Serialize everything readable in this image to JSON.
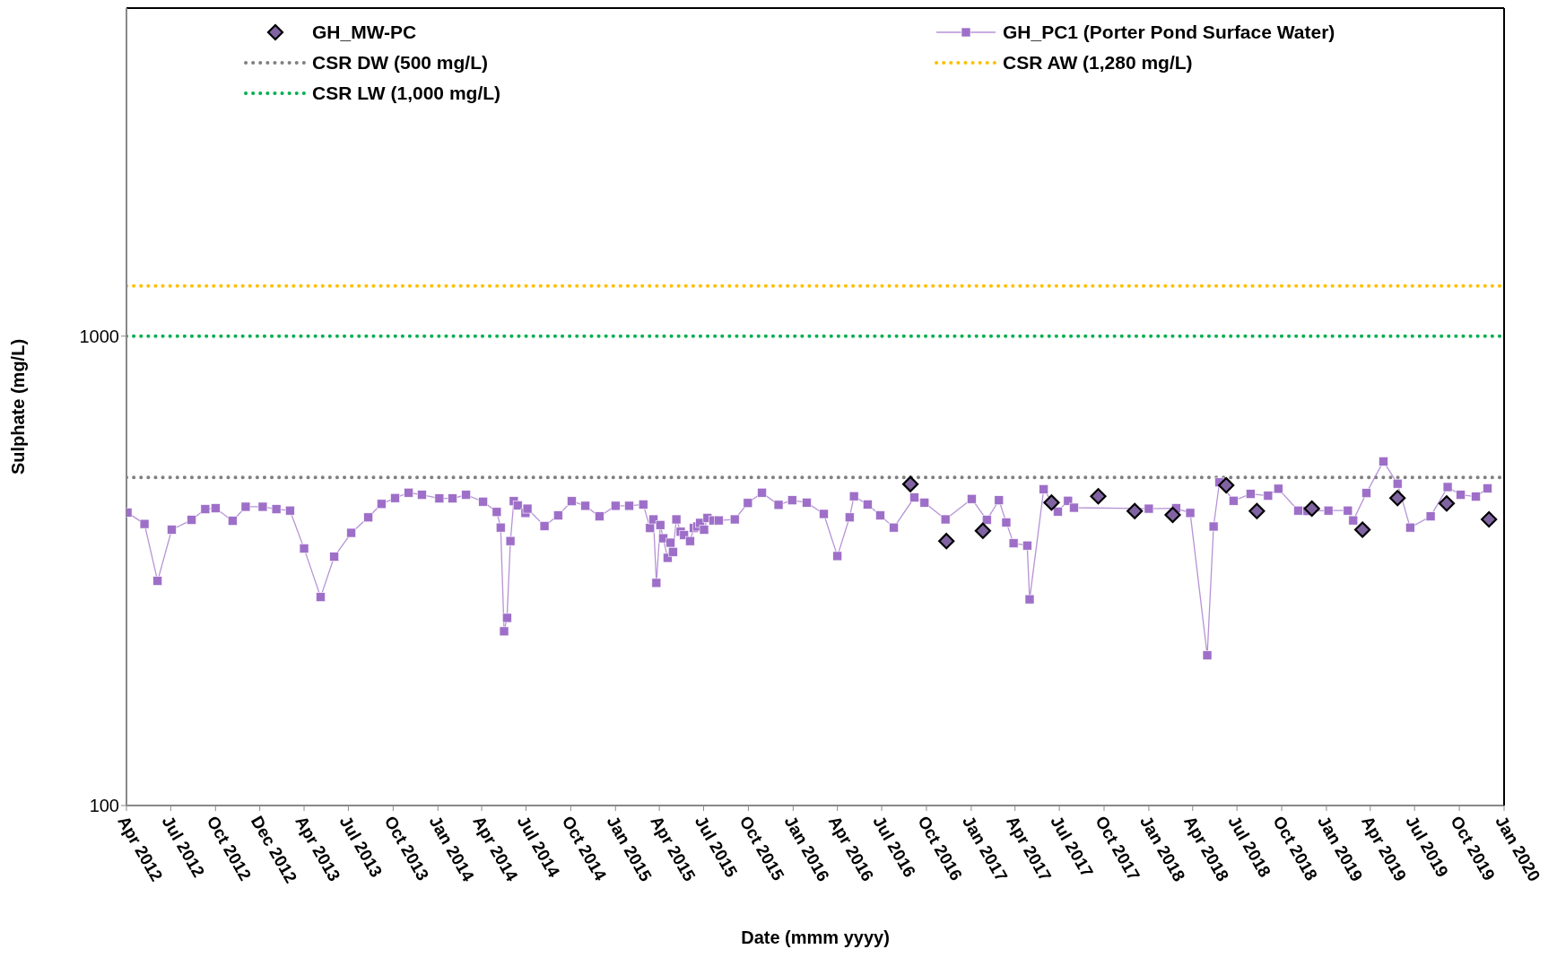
{
  "chart_data": {
    "type": "line",
    "xlabel": "Date (mmm yyyy)",
    "ylabel": "Sulphate (mg/L)",
    "log": "y",
    "legend": "top",
    "ylim": [
      100,
      5000
    ],
    "yticks": [
      100,
      1000
    ],
    "xlim": [
      "2012-04-01",
      "2020-01-01"
    ],
    "xticks": [
      {
        "value": "2012-04-01",
        "label": "Apr 2012"
      },
      {
        "value": "2012-07-01",
        "label": "Jul 2012"
      },
      {
        "value": "2012-10-01",
        "label": "Oct 2012"
      },
      {
        "value": "2012-12-31",
        "label": "Dec 2012"
      },
      {
        "value": "2013-04-01",
        "label": "Apr 2013"
      },
      {
        "value": "2013-07-01",
        "label": "Jul 2013"
      },
      {
        "value": "2013-10-01",
        "label": "Oct 2013"
      },
      {
        "value": "2014-01-01",
        "label": "Jan 2014"
      },
      {
        "value": "2014-04-01",
        "label": "Apr 2014"
      },
      {
        "value": "2014-07-01",
        "label": "Jul 2014"
      },
      {
        "value": "2014-10-01",
        "label": "Oct 2014"
      },
      {
        "value": "2015-01-01",
        "label": "Jan 2015"
      },
      {
        "value": "2015-04-01",
        "label": "Apr 2015"
      },
      {
        "value": "2015-07-01",
        "label": "Jul 2015"
      },
      {
        "value": "2015-10-01",
        "label": "Oct 2015"
      },
      {
        "value": "2016-01-01",
        "label": "Jan 2016"
      },
      {
        "value": "2016-04-01",
        "label": "Apr 2016"
      },
      {
        "value": "2016-07-01",
        "label": "Jul 2016"
      },
      {
        "value": "2016-10-01",
        "label": "Oct 2016"
      },
      {
        "value": "2017-01-01",
        "label": "Jan 2017"
      },
      {
        "value": "2017-04-01",
        "label": "Apr 2017"
      },
      {
        "value": "2017-07-01",
        "label": "Jul 2017"
      },
      {
        "value": "2017-10-01",
        "label": "Oct 2017"
      },
      {
        "value": "2018-01-01",
        "label": "Jan 2018"
      },
      {
        "value": "2018-04-01",
        "label": "Apr 2018"
      },
      {
        "value": "2018-07-01",
        "label": "Jul 2018"
      },
      {
        "value": "2018-10-01",
        "label": "Oct 2018"
      },
      {
        "value": "2019-01-01",
        "label": "Jan 2019"
      },
      {
        "value": "2019-04-01",
        "label": "Apr 2019"
      },
      {
        "value": "2019-07-01",
        "label": "Jul 2019"
      },
      {
        "value": "2019-10-01",
        "label": "Oct 2019"
      },
      {
        "value": "2020-01-01",
        "label": "Jan 2020"
      }
    ],
    "series": [
      {
        "name": "GH_MW-PC",
        "type": "scatter",
        "marker": "diamond",
        "color": "#8064a2",
        "x": [
          "2016-08-29",
          "2016-11-11",
          "2017-01-25",
          "2017-06-15",
          "2017-09-19",
          "2017-12-03",
          "2018-02-19",
          "2018-06-09",
          "2018-08-11",
          "2018-12-02",
          "2019-03-16",
          "2019-05-27",
          "2019-09-05",
          "2019-12-01"
        ],
        "values": [
          484,
          366,
          385,
          442,
          456,
          424,
          416,
          481,
          424,
          429,
          387,
          452,
          440,
          407
        ]
      },
      {
        "name": "GH_PC1 (Porter Pond Surface Water)",
        "marker": "square",
        "color": "#9e6fc8",
        "x": [
          "2012-04-03",
          "2012-05-08",
          "2012-06-04",
          "2012-07-03",
          "2012-08-13",
          "2012-09-10",
          "2012-10-01",
          "2012-11-05",
          "2012-12-02",
          "2013-01-06",
          "2013-02-03",
          "2013-03-03",
          "2013-04-01",
          "2013-05-05",
          "2013-06-02",
          "2013-07-07",
          "2013-08-11",
          "2013-09-07",
          "2013-10-05",
          "2013-11-02",
          "2013-11-29",
          "2014-01-04",
          "2014-01-31",
          "2014-02-28",
          "2014-04-04",
          "2014-05-02",
          "2014-05-10",
          "2014-05-17",
          "2014-05-23",
          "2014-05-30",
          "2014-06-06",
          "2014-06-14",
          "2014-06-30",
          "2014-07-04",
          "2014-08-08",
          "2014-09-05",
          "2014-10-03",
          "2014-10-31",
          "2014-11-29",
          "2015-01-01",
          "2015-01-29",
          "2015-02-27",
          "2015-03-13",
          "2015-03-20",
          "2015-03-26",
          "2015-04-03",
          "2015-04-09",
          "2015-04-18",
          "2015-04-24",
          "2015-04-29",
          "2015-05-06",
          "2015-05-15",
          "2015-05-22",
          "2015-06-03",
          "2015-06-11",
          "2015-06-18",
          "2015-06-24",
          "2015-07-02",
          "2015-07-09",
          "2015-07-21",
          "2015-08-01",
          "2015-09-03",
          "2015-09-30",
          "2015-10-29",
          "2015-12-02",
          "2015-12-30",
          "2016-01-29",
          "2016-03-04",
          "2016-04-01",
          "2016-04-26",
          "2016-05-05",
          "2016-06-02",
          "2016-06-28",
          "2016-07-26",
          "2016-09-06",
          "2016-09-27",
          "2016-11-09",
          "2017-01-02",
          "2017-02-02",
          "2017-02-27",
          "2017-03-14",
          "2017-03-29",
          "2017-04-26",
          "2017-05-01",
          "2017-05-30",
          "2017-06-28",
          "2017-07-19",
          "2017-07-31",
          "2018-01-01",
          "2018-02-26",
          "2018-03-27",
          "2018-05-01",
          "2018-05-14",
          "2018-05-26",
          "2018-06-24",
          "2018-07-29",
          "2018-09-03",
          "2018-09-24",
          "2018-11-04",
          "2018-11-23",
          "2019-01-05",
          "2019-02-14",
          "2019-02-25",
          "2019-03-24",
          "2019-04-28",
          "2019-05-27",
          "2019-06-22",
          "2019-08-03",
          "2019-09-07",
          "2019-10-04",
          "2019-11-04",
          "2019-11-28"
        ],
        "values": [
          421,
          398,
          301,
          387,
          406,
          428,
          430,
          404,
          433,
          433,
          428,
          425,
          353,
          278,
          339,
          381,
          411,
          439,
          452,
          464,
          459,
          451,
          451,
          459,
          444,
          422,
          391,
          235,
          251,
          366,
          445,
          436,
          420,
          429,
          394,
          415,
          445,
          435,
          413,
          435,
          435,
          438,
          390,
          407,
          298,
          396,
          371,
          337,
          363,
          347,
          407,
          383,
          377,
          366,
          390,
          393,
          400,
          387,
          410,
          405,
          405,
          407,
          441,
          464,
          437,
          447,
          442,
          418,
          340,
          411,
          456,
          438,
          415,
          391,
          453,
          442,
          407,
          450,
          406,
          447,
          401,
          362,
          358,
          275,
          472,
          423,
          446,
          431,
          429,
          430,
          420,
          209,
          393,
          488,
          446,
          461,
          457,
          473,
          425,
          424,
          425,
          425,
          405,
          463,
          541,
          485,
          391,
          413,
          477,
          459,
          455,
          474
        ]
      }
    ],
    "ref_lines": [
      {
        "axis": "y",
        "value": 500,
        "label": "CSR DW (500 mg/L)",
        "color": "#808080",
        "line_style": "dotted"
      },
      {
        "axis": "y",
        "value": 1280,
        "label": "CSR AW (1,280 mg/L)",
        "color": "#ffc000",
        "line_style": "dotted"
      },
      {
        "axis": "y",
        "value": 1000,
        "label": "CSR LW (1,000 mg/L)",
        "color": "#00b050",
        "line_style": "dotted"
      }
    ]
  }
}
